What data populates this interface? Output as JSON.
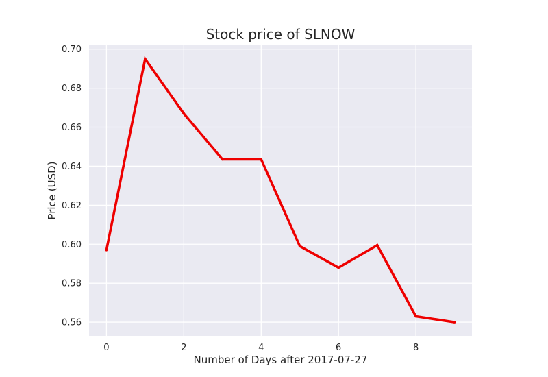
{
  "chart_data": {
    "type": "line",
    "title": "Stock price of SLNOW",
    "xlabel": "Number of Days after 2017-07-27",
    "ylabel": "Price (USD)",
    "xlim": [
      -0.45,
      9.45
    ],
    "ylim": [
      0.553,
      0.702
    ],
    "xticks": [
      0,
      2,
      4,
      6,
      8
    ],
    "xtick_labels": [
      "0",
      "2",
      "4",
      "6",
      "8"
    ],
    "yticks": [
      0.56,
      0.58,
      0.6,
      0.62,
      0.64,
      0.66,
      0.68,
      0.7
    ],
    "ytick_labels": [
      "0.56",
      "0.58",
      "0.60",
      "0.62",
      "0.64",
      "0.66",
      "0.68",
      "0.70"
    ],
    "grid": true,
    "background_color": "#eaeaf2",
    "series": [
      {
        "color": "#ee0000",
        "x": [
          0,
          1,
          2,
          3,
          4,
          5,
          6,
          7,
          8,
          9
        ],
        "y": [
          0.597,
          0.695,
          0.667,
          0.6435,
          0.6435,
          0.599,
          0.588,
          0.5995,
          0.563,
          0.56
        ]
      }
    ]
  }
}
